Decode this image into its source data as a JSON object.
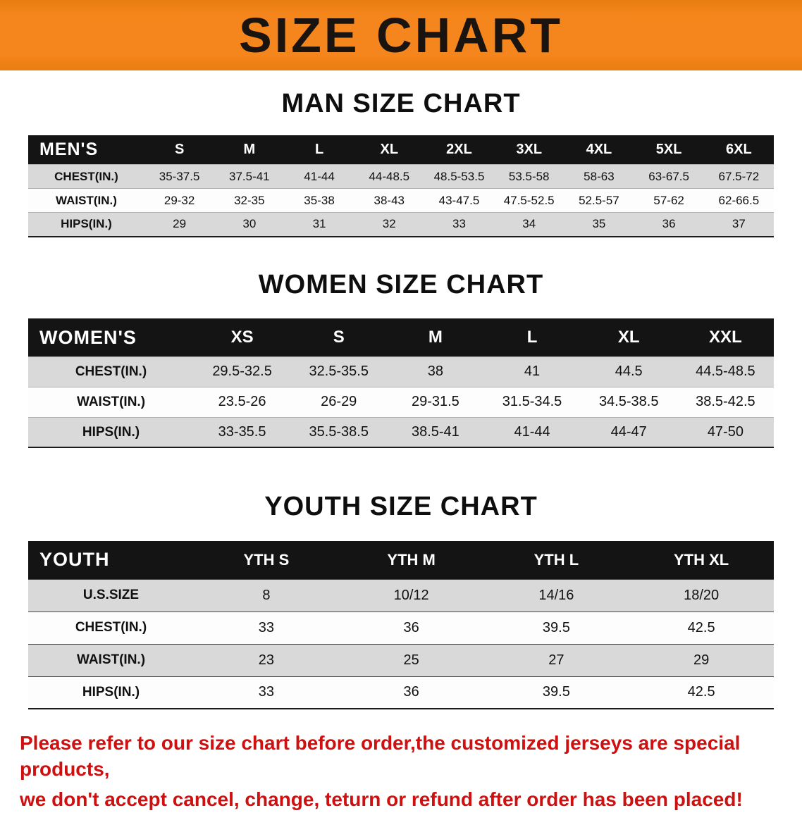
{
  "banner": {
    "title": "SIZE CHART"
  },
  "colors": {
    "banner_bg": "#f5861d",
    "banner_text": "#1a1410",
    "table_header_bg": "#141414",
    "row_alt": "#d9d9d9",
    "footer_red": "#cf1010"
  },
  "chart_data": [
    {
      "type": "table",
      "title": "MAN SIZE CHART",
      "columns": [
        "MEN'S",
        "S",
        "M",
        "L",
        "XL",
        "2XL",
        "3XL",
        "4XL",
        "5XL",
        "6XL"
      ],
      "rows": [
        [
          "CHEST(IN.)",
          "35-37.5",
          "37.5-41",
          "41-44",
          "44-48.5",
          "48.5-53.5",
          "53.5-58",
          "58-63",
          "63-67.5",
          "67.5-72"
        ],
        [
          "WAIST(IN.)",
          "29-32",
          "32-35",
          "35-38",
          "38-43",
          "43-47.5",
          "47.5-52.5",
          "52.5-57",
          "57-62",
          "62-66.5"
        ],
        [
          "HIPS(IN.)",
          "29",
          "30",
          "31",
          "32",
          "33",
          "34",
          "35",
          "36",
          "37"
        ]
      ]
    },
    {
      "type": "table",
      "title": "WOMEN SIZE CHART",
      "columns": [
        "WOMEN'S",
        "XS",
        "S",
        "M",
        "L",
        "XL",
        "XXL"
      ],
      "rows": [
        [
          "CHEST(IN.)",
          "29.5-32.5",
          "32.5-35.5",
          "38",
          "41",
          "44.5",
          "44.5-48.5"
        ],
        [
          "WAIST(IN.)",
          "23.5-26",
          "26-29",
          "29-31.5",
          "31.5-34.5",
          "34.5-38.5",
          "38.5-42.5"
        ],
        [
          "HIPS(IN.)",
          "33-35.5",
          "35.5-38.5",
          "38.5-41",
          "41-44",
          "44-47",
          "47-50"
        ]
      ]
    },
    {
      "type": "table",
      "title": "YOUTH SIZE CHART",
      "columns": [
        "YOUTH",
        "YTH S",
        "YTH M",
        "YTH L",
        "YTH XL"
      ],
      "rows": [
        [
          "U.S.SIZE",
          "8",
          "10/12",
          "14/16",
          "18/20"
        ],
        [
          "CHEST(IN.)",
          "33",
          "36",
          "39.5",
          "42.5"
        ],
        [
          "WAIST(IN.)",
          "23",
          "25",
          "27",
          "29"
        ],
        [
          "HIPS(IN.)",
          "33",
          "36",
          "39.5",
          "42.5"
        ]
      ]
    }
  ],
  "footer": {
    "line1": "Please refer to our size chart before order,the customized jerseys are special products,",
    "line2": "we don't accept cancel, change, teturn or refund after order has been placed!"
  }
}
